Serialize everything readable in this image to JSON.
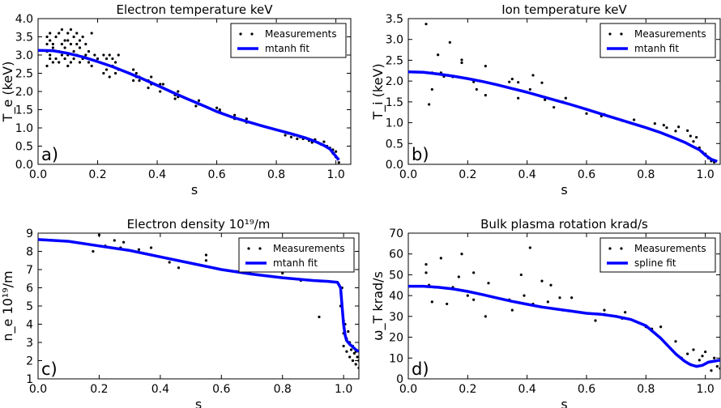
{
  "figure": {
    "colors": {
      "measurement": "#000000",
      "fit": "#0000ff"
    }
  },
  "chart_data": [
    {
      "type": "scatter",
      "title": "Electron temperature keV",
      "xlabel": "s",
      "ylabel": "T_e (keV)",
      "panel_label": "a)",
      "xlim": [
        0.0,
        1.05
      ],
      "ylim": [
        0.0,
        4.0
      ],
      "xticks": [
        "0.0",
        "0.2",
        "0.4",
        "0.6",
        "0.8",
        "1.0"
      ],
      "yticks": [
        "0.0",
        "0.5",
        "1.0",
        "1.5",
        "2.0",
        "2.5",
        "3.0",
        "3.5",
        "4.0"
      ],
      "legend": {
        "position": "top-right",
        "entries": [
          "Measurements",
          "mtanh fit"
        ]
      },
      "series": [
        {
          "name": "Measurements",
          "kind": "points",
          "x": [
            0.03,
            0.03,
            0.03,
            0.03,
            0.04,
            0.04,
            0.04,
            0.04,
            0.05,
            0.05,
            0.05,
            0.06,
            0.06,
            0.07,
            0.07,
            0.07,
            0.08,
            0.08,
            0.08,
            0.09,
            0.09,
            0.09,
            0.1,
            0.1,
            0.1,
            0.1,
            0.11,
            0.11,
            0.11,
            0.12,
            0.12,
            0.12,
            0.13,
            0.13,
            0.13,
            0.14,
            0.14,
            0.14,
            0.15,
            0.15,
            0.16,
            0.16,
            0.17,
            0.17,
            0.18,
            0.18,
            0.19,
            0.2,
            0.22,
            0.22,
            0.23,
            0.23,
            0.24,
            0.24,
            0.25,
            0.25,
            0.26,
            0.26,
            0.27,
            0.27,
            0.32,
            0.32,
            0.33,
            0.33,
            0.34,
            0.34,
            0.37,
            0.37,
            0.38,
            0.38,
            0.41,
            0.41,
            0.42,
            0.42,
            0.46,
            0.46,
            0.47,
            0.47,
            0.53,
            0.53,
            0.54,
            0.54,
            0.6,
            0.6,
            0.61,
            0.61,
            0.66,
            0.66,
            0.7,
            0.7,
            0.83,
            0.84,
            0.85,
            0.86,
            0.87,
            0.88,
            0.89,
            0.9,
            0.91,
            0.92,
            0.93,
            0.94,
            0.95,
            0.96,
            0.97,
            0.98,
            0.99,
            0.99,
            1.0,
            1.0,
            1.01
          ],
          "y": [
            2.7,
            3.1,
            3.5,
            3.3,
            2.9,
            3.4,
            3.6,
            3.0,
            3.2,
            2.8,
            3.3,
            3.5,
            2.9,
            3.1,
            3.6,
            2.8,
            3.3,
            3.0,
            3.7,
            2.9,
            3.4,
            3.2,
            3.6,
            2.7,
            3.0,
            3.4,
            3.3,
            3.7,
            2.8,
            3.1,
            3.5,
            2.9,
            3.0,
            3.6,
            3.3,
            2.8,
            3.2,
            3.4,
            3.5,
            2.9,
            3.0,
            3.3,
            2.8,
            3.1,
            3.6,
            2.7,
            3.0,
            2.9,
            2.5,
            3.0,
            2.6,
            2.9,
            2.4,
            3.0,
            2.7,
            2.9,
            2.5,
            2.8,
            2.6,
            3.0,
            2.3,
            2.6,
            2.4,
            2.5,
            2.3,
            2.4,
            2.1,
            2.3,
            2.2,
            2.4,
            2.0,
            2.2,
            2.1,
            2.2,
            1.8,
            1.9,
            1.85,
            2.0,
            1.6,
            1.7,
            1.65,
            1.75,
            1.45,
            1.55,
            1.5,
            1.45,
            1.25,
            1.35,
            1.15,
            1.25,
            0.8,
            0.85,
            0.75,
            0.8,
            0.7,
            0.75,
            0.7,
            0.72,
            0.65,
            0.6,
            0.68,
            0.6,
            0.55,
            0.62,
            0.5,
            0.45,
            0.4,
            0.3,
            0.35,
            0.2,
            0.05
          ]
        },
        {
          "name": "mtanh fit",
          "kind": "line",
          "x": [
            0.0,
            0.05,
            0.1,
            0.15,
            0.2,
            0.25,
            0.3,
            0.35,
            0.4,
            0.45,
            0.5,
            0.55,
            0.6,
            0.65,
            0.7,
            0.75,
            0.8,
            0.85,
            0.9,
            0.93,
            0.96,
            0.98,
            1.0,
            1.01
          ],
          "y": [
            3.13,
            3.12,
            3.05,
            2.95,
            2.82,
            2.68,
            2.52,
            2.35,
            2.17,
            1.98,
            1.8,
            1.63,
            1.45,
            1.3,
            1.18,
            1.06,
            0.95,
            0.84,
            0.72,
            0.63,
            0.52,
            0.42,
            0.22,
            0.12
          ]
        }
      ]
    },
    {
      "type": "scatter",
      "title": "Ion temperature keV",
      "xlabel": "s",
      "ylabel": "T_i (keV)",
      "panel_label": "b)",
      "xlim": [
        0.0,
        1.05
      ],
      "ylim": [
        0.0,
        3.5
      ],
      "xticks": [
        "0.0",
        "0.2",
        "0.4",
        "0.6",
        "0.8",
        "1.0"
      ],
      "yticks": [
        "0.0",
        "0.5",
        "1.0",
        "1.5",
        "2.0",
        "2.5",
        "3.0",
        "3.5"
      ],
      "legend": {
        "position": "top-right",
        "entries": [
          "Measurements",
          "mtanh fit"
        ]
      },
      "series": [
        {
          "name": "Measurements",
          "kind": "points",
          "x": [
            0.06,
            0.07,
            0.08,
            0.08,
            0.1,
            0.11,
            0.12,
            0.14,
            0.15,
            0.18,
            0.18,
            0.22,
            0.23,
            0.26,
            0.26,
            0.34,
            0.35,
            0.37,
            0.37,
            0.41,
            0.42,
            0.45,
            0.46,
            0.49,
            0.52,
            0.53,
            0.6,
            0.65,
            0.66,
            0.72,
            0.76,
            0.83,
            0.86,
            0.87,
            0.9,
            0.91,
            0.94,
            0.95,
            0.96,
            0.97,
            0.98,
            0.99,
            1.0,
            1.01,
            1.02,
            1.03
          ],
          "y": [
            3.37,
            1.44,
            1.8,
            2.2,
            2.63,
            2.2,
            2.11,
            2.93,
            2.1,
            2.51,
            2.44,
            1.98,
            1.8,
            1.66,
            2.36,
            1.98,
            2.05,
            1.97,
            1.59,
            1.8,
            2.14,
            1.96,
            1.55,
            1.37,
            1.5,
            1.59,
            1.22,
            1.16,
            1.2,
            1.05,
            1.07,
            0.98,
            0.94,
            0.88,
            0.8,
            0.9,
            0.81,
            0.68,
            0.55,
            0.65,
            0.4,
            0.3,
            0.25,
            0.15,
            0.08,
            0.05
          ]
        },
        {
          "name": "mtanh fit",
          "kind": "line",
          "x": [
            0.0,
            0.05,
            0.1,
            0.15,
            0.2,
            0.25,
            0.3,
            0.35,
            0.4,
            0.45,
            0.5,
            0.55,
            0.6,
            0.65,
            0.7,
            0.75,
            0.8,
            0.85,
            0.9,
            0.93,
            0.96,
            0.98,
            1.0,
            1.02,
            1.04
          ],
          "y": [
            2.22,
            2.21,
            2.17,
            2.12,
            2.06,
            1.99,
            1.91,
            1.82,
            1.73,
            1.63,
            1.53,
            1.43,
            1.32,
            1.21,
            1.1,
            0.99,
            0.88,
            0.76,
            0.62,
            0.53,
            0.42,
            0.35,
            0.22,
            0.12,
            0.07
          ]
        }
      ]
    },
    {
      "type": "scatter",
      "title": "Electron density 10¹⁹/m",
      "xlabel": "s",
      "ylabel": "n_e 10¹⁹/m",
      "panel_label": "c)",
      "xlim": [
        0.0,
        1.05
      ],
      "ylim": [
        1,
        9
      ],
      "xticks": [
        "0.0",
        "0.2",
        "0.4",
        "0.6",
        "0.8",
        "1.0"
      ],
      "yticks": [
        "1",
        "2",
        "3",
        "4",
        "5",
        "6",
        "7",
        "8",
        "9"
      ],
      "legend": {
        "position": "top-right",
        "entries": [
          "Measurements",
          "mtanh fit"
        ]
      },
      "series": [
        {
          "name": "Measurements",
          "kind": "points",
          "x": [
            0.18,
            0.2,
            0.22,
            0.25,
            0.27,
            0.28,
            0.33,
            0.37,
            0.43,
            0.46,
            0.55,
            0.55,
            0.65,
            0.67,
            0.8,
            0.86,
            0.92,
            0.99,
            0.995,
            1.0,
            1.0,
            1.0,
            1.005,
            1.01,
            1.01,
            1.015,
            1.02,
            1.02,
            1.025,
            1.03,
            1.03,
            1.035,
            1.04,
            1.04,
            1.045,
            1.05,
            1.05
          ],
          "y": [
            8.0,
            8.9,
            8.3,
            8.6,
            8.2,
            8.5,
            8.1,
            8.2,
            7.4,
            7.1,
            7.8,
            7.5,
            6.9,
            7.2,
            6.8,
            6.4,
            4.4,
            5.0,
            6.0,
            4.2,
            3.5,
            2.8,
            4.0,
            3.2,
            2.5,
            3.6,
            2.2,
            3.0,
            2.6,
            2.0,
            2.8,
            2.4,
            1.8,
            2.5,
            2.2,
            1.6,
            2.0
          ]
        },
        {
          "name": "mtanh fit",
          "kind": "line",
          "x": [
            0.0,
            0.1,
            0.2,
            0.3,
            0.4,
            0.5,
            0.6,
            0.7,
            0.8,
            0.9,
            0.95,
            0.98,
            0.99,
            1.0,
            1.005,
            1.01,
            1.02,
            1.03,
            1.04,
            1.05
          ],
          "y": [
            8.65,
            8.55,
            8.3,
            8.05,
            7.7,
            7.35,
            7.0,
            6.75,
            6.55,
            6.4,
            6.35,
            6.3,
            6.0,
            4.0,
            3.4,
            3.1,
            2.9,
            2.75,
            2.6,
            2.5
          ]
        }
      ]
    },
    {
      "type": "scatter",
      "title": "Bulk plasma rotation krad/s",
      "xlabel": "s",
      "ylabel": "ω_T krad/s",
      "panel_label": "d)",
      "xlim": [
        0.0,
        1.05
      ],
      "ylim": [
        0,
        70
      ],
      "xticks": [
        "0.0",
        "0.2",
        "0.4",
        "0.6",
        "0.8",
        "1.0"
      ],
      "yticks": [
        "0",
        "10",
        "20",
        "30",
        "40",
        "50",
        "60",
        "70"
      ],
      "legend": {
        "position": "top-right",
        "entries": [
          "Measurements",
          "spline fit"
        ]
      },
      "series": [
        {
          "name": "Measurements",
          "kind": "points",
          "x": [
            0.06,
            0.06,
            0.07,
            0.08,
            0.09,
            0.11,
            0.13,
            0.15,
            0.17,
            0.18,
            0.2,
            0.22,
            0.22,
            0.26,
            0.27,
            0.34,
            0.35,
            0.38,
            0.39,
            0.41,
            0.42,
            0.45,
            0.47,
            0.48,
            0.51,
            0.52,
            0.55,
            0.63,
            0.66,
            0.66,
            0.72,
            0.73,
            0.8,
            0.82,
            0.85,
            0.9,
            0.92,
            0.94,
            0.95,
            0.96,
            0.97,
            0.98,
            0.99,
            1.0,
            1.01,
            1.02,
            1.03,
            1.04,
            1.05
          ],
          "y": [
            55,
            51,
            45,
            37,
            44,
            58,
            36,
            44,
            49,
            60,
            40,
            51,
            38,
            30,
            46,
            38,
            33,
            50,
            40,
            63,
            36,
            47,
            37,
            45,
            39,
            33,
            39,
            28,
            33,
            31,
            29,
            32,
            25,
            24,
            25,
            18,
            10,
            12,
            7,
            14,
            6,
            9,
            11,
            13,
            8,
            4,
            10,
            6,
            5
          ]
        },
        {
          "name": "spline fit",
          "kind": "line",
          "x": [
            0.0,
            0.05,
            0.1,
            0.15,
            0.2,
            0.25,
            0.3,
            0.35,
            0.4,
            0.45,
            0.5,
            0.55,
            0.6,
            0.65,
            0.7,
            0.75,
            0.8,
            0.85,
            0.9,
            0.93,
            0.95,
            0.97,
            0.99,
            1.01,
            1.03,
            1.05
          ],
          "y": [
            44.5,
            44.5,
            44.0,
            43.2,
            42.0,
            40.5,
            38.8,
            37.2,
            35.8,
            34.5,
            33.5,
            32.5,
            31.5,
            31.0,
            30.0,
            28.5,
            25.5,
            19.5,
            12.0,
            8.5,
            6.8,
            6.0,
            6.5,
            8.0,
            8.5,
            9.0
          ]
        }
      ]
    }
  ]
}
